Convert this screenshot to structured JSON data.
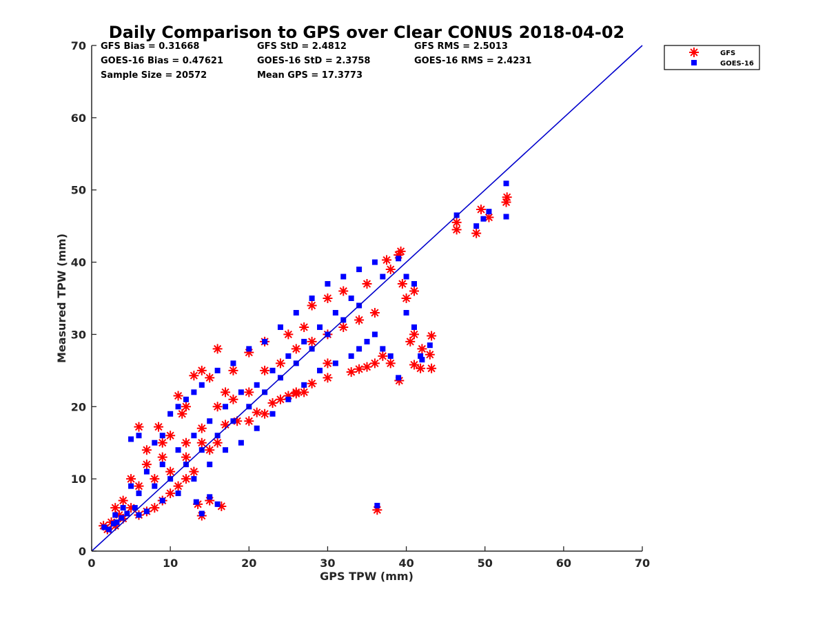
{
  "chart_data": {
    "type": "scatter",
    "title": "Daily Comparison to GPS over Clear CONUS 2018-04-02",
    "xlabel": "GPS TPW (mm)",
    "ylabel": "Measured TPW (mm)",
    "xlim": [
      0,
      70
    ],
    "ylim": [
      0,
      70
    ],
    "xticks": [
      "0",
      "10",
      "20",
      "30",
      "40",
      "50",
      "60",
      "70"
    ],
    "yticks": [
      "0",
      "10",
      "20",
      "30",
      "40",
      "50",
      "60",
      "70"
    ],
    "grid": false,
    "legend_position": "top-right outside",
    "stats": [
      [
        "GFS Bias = 0.31668",
        "GFS StD = 2.4812",
        "GFS RMS = 2.5013"
      ],
      [
        "GOES-16 Bias = 0.47621",
        "GOES-16 StD = 2.3758",
        "GOES-16 RMS = 2.4231"
      ],
      [
        "Sample Size = 20572",
        "Mean GPS = 17.3773"
      ]
    ],
    "reference_line": {
      "name": "1:1 line",
      "x": [
        0,
        70
      ],
      "y": [
        0,
        70
      ],
      "color": "#0000cc"
    },
    "series": [
      {
        "name": "GFS",
        "marker": "asterisk",
        "color": "#ff0000",
        "points": [
          [
            1.5,
            3.5
          ],
          [
            2,
            3
          ],
          [
            2.5,
            4
          ],
          [
            3,
            3.5
          ],
          [
            3.5,
            5
          ],
          [
            4,
            4.5
          ],
          [
            5,
            6
          ],
          [
            6,
            17.2
          ],
          [
            8.5,
            17.2
          ],
          [
            7,
            14
          ],
          [
            9,
            15
          ],
          [
            11,
            21.5
          ],
          [
            12,
            20
          ],
          [
            11.5,
            19
          ],
          [
            13,
            24.3
          ],
          [
            16,
            28
          ],
          [
            14,
            25
          ],
          [
            15,
            24
          ],
          [
            17,
            22
          ],
          [
            18,
            25
          ],
          [
            20,
            27.5
          ],
          [
            22,
            29
          ],
          [
            25,
            30
          ],
          [
            27,
            31
          ],
          [
            28,
            34
          ],
          [
            30,
            35
          ],
          [
            32,
            36
          ],
          [
            35,
            37
          ],
          [
            37.5,
            40.3
          ],
          [
            39.3,
            41.5
          ],
          [
            39,
            41
          ],
          [
            38,
            39
          ],
          [
            39.5,
            37
          ],
          [
            40,
            35
          ],
          [
            41,
            36
          ],
          [
            41,
            30
          ],
          [
            40.5,
            29
          ],
          [
            42,
            28
          ],
          [
            43,
            27.2
          ],
          [
            43.2,
            29.8
          ],
          [
            43.2,
            25.3
          ],
          [
            41.8,
            25.3
          ],
          [
            41,
            25.8
          ],
          [
            39.1,
            23.6
          ],
          [
            38,
            26
          ],
          [
            37,
            27
          ],
          [
            36,
            26
          ],
          [
            35,
            25.5
          ],
          [
            34,
            25.2
          ],
          [
            33,
            24.8
          ],
          [
            30,
            24
          ],
          [
            28,
            23.2
          ],
          [
            27,
            22
          ],
          [
            26,
            21.8
          ],
          [
            25,
            21.5
          ],
          [
            23,
            20.5
          ],
          [
            21,
            19.2
          ],
          [
            18.5,
            18
          ],
          [
            17,
            17.5
          ],
          [
            16,
            15
          ],
          [
            15,
            14
          ],
          [
            13,
            11
          ],
          [
            12,
            10
          ],
          [
            11,
            9
          ],
          [
            10,
            8
          ],
          [
            9,
            7
          ],
          [
            8,
            6
          ],
          [
            7,
            5.5
          ],
          [
            6,
            5
          ],
          [
            14,
            4.9
          ],
          [
            13.5,
            6.5
          ],
          [
            16.5,
            6.2
          ],
          [
            15,
            7
          ],
          [
            36.3,
            5.7
          ],
          [
            46.4,
            44.5
          ],
          [
            46.4,
            45.5
          ],
          [
            48.9,
            44
          ],
          [
            49.5,
            47.3
          ],
          [
            50.5,
            46.2
          ],
          [
            52.7,
            48.3
          ],
          [
            52.8,
            49
          ],
          [
            5,
            10
          ],
          [
            7,
            12
          ],
          [
            9,
            13
          ],
          [
            10,
            16
          ],
          [
            12,
            15
          ],
          [
            14,
            17
          ],
          [
            16,
            20
          ],
          [
            18,
            21
          ],
          [
            20,
            22
          ],
          [
            22,
            25
          ],
          [
            24,
            26
          ],
          [
            26,
            28
          ],
          [
            28,
            29
          ],
          [
            30,
            30
          ],
          [
            32,
            31
          ],
          [
            34,
            32
          ],
          [
            36,
            33
          ],
          [
            10,
            11
          ],
          [
            12,
            13
          ],
          [
            14,
            15
          ],
          [
            20,
            18
          ],
          [
            22,
            19
          ],
          [
            24,
            21
          ],
          [
            26,
            22
          ],
          [
            30,
            26
          ],
          [
            8,
            10
          ],
          [
            6,
            9
          ],
          [
            4,
            7
          ],
          [
            3,
            6
          ]
        ]
      },
      {
        "name": "GOES-16",
        "marker": "square",
        "color": "#0000ff",
        "points": [
          [
            1.6,
            3.3
          ],
          [
            2.2,
            3
          ],
          [
            2.8,
            3.8
          ],
          [
            3.2,
            4
          ],
          [
            3.8,
            4.6
          ],
          [
            4.5,
            5.2
          ],
          [
            5.5,
            6
          ],
          [
            5,
            15.5
          ],
          [
            6,
            16
          ],
          [
            8,
            15
          ],
          [
            9,
            16
          ],
          [
            10,
            19
          ],
          [
            11,
            20
          ],
          [
            12,
            21
          ],
          [
            13,
            22
          ],
          [
            14,
            23
          ],
          [
            16,
            25
          ],
          [
            18,
            26
          ],
          [
            20,
            28
          ],
          [
            22,
            29
          ],
          [
            24,
            31
          ],
          [
            26,
            33
          ],
          [
            28,
            35
          ],
          [
            30,
            37
          ],
          [
            32,
            38
          ],
          [
            34,
            39
          ],
          [
            36,
            40
          ],
          [
            37,
            38
          ],
          [
            39,
            40.5
          ],
          [
            40,
            38
          ],
          [
            41,
            37
          ],
          [
            40,
            33
          ],
          [
            41,
            31
          ],
          [
            41.8,
            27
          ],
          [
            42,
            26.5
          ],
          [
            43,
            28.5
          ],
          [
            39,
            24
          ],
          [
            38,
            27
          ],
          [
            37,
            28
          ],
          [
            36,
            30
          ],
          [
            35,
            29
          ],
          [
            34,
            28
          ],
          [
            33,
            27
          ],
          [
            31,
            26
          ],
          [
            29,
            25
          ],
          [
            27,
            23
          ],
          [
            25,
            21
          ],
          [
            23,
            19
          ],
          [
            21,
            17
          ],
          [
            19,
            15
          ],
          [
            17,
            14
          ],
          [
            15,
            12
          ],
          [
            13,
            10
          ],
          [
            11,
            8
          ],
          [
            9,
            7
          ],
          [
            7,
            5.5
          ],
          [
            6,
            5
          ],
          [
            14,
            5.2
          ],
          [
            13.3,
            6.8
          ],
          [
            16,
            6.5
          ],
          [
            15,
            7.5
          ],
          [
            36.3,
            6.3
          ],
          [
            46.4,
            46.5
          ],
          [
            48.9,
            45
          ],
          [
            49.8,
            46
          ],
          [
            50.5,
            47
          ],
          [
            52.7,
            50.9
          ],
          [
            52.7,
            46.3
          ],
          [
            5,
            9
          ],
          [
            7,
            11
          ],
          [
            9,
            12
          ],
          [
            11,
            14
          ],
          [
            13,
            16
          ],
          [
            15,
            18
          ],
          [
            17,
            20
          ],
          [
            19,
            22
          ],
          [
            21,
            23
          ],
          [
            23,
            25
          ],
          [
            25,
            27
          ],
          [
            27,
            29
          ],
          [
            29,
            31
          ],
          [
            31,
            33
          ],
          [
            33,
            35
          ],
          [
            10,
            10
          ],
          [
            12,
            12
          ],
          [
            14,
            14
          ],
          [
            16,
            16
          ],
          [
            18,
            18
          ],
          [
            20,
            20
          ],
          [
            22,
            22
          ],
          [
            24,
            24
          ],
          [
            26,
            26
          ],
          [
            28,
            28
          ],
          [
            30,
            30
          ],
          [
            32,
            32
          ],
          [
            34,
            34
          ],
          [
            8,
            9
          ],
          [
            6,
            8
          ],
          [
            4,
            6
          ],
          [
            3,
            5
          ]
        ]
      }
    ]
  }
}
